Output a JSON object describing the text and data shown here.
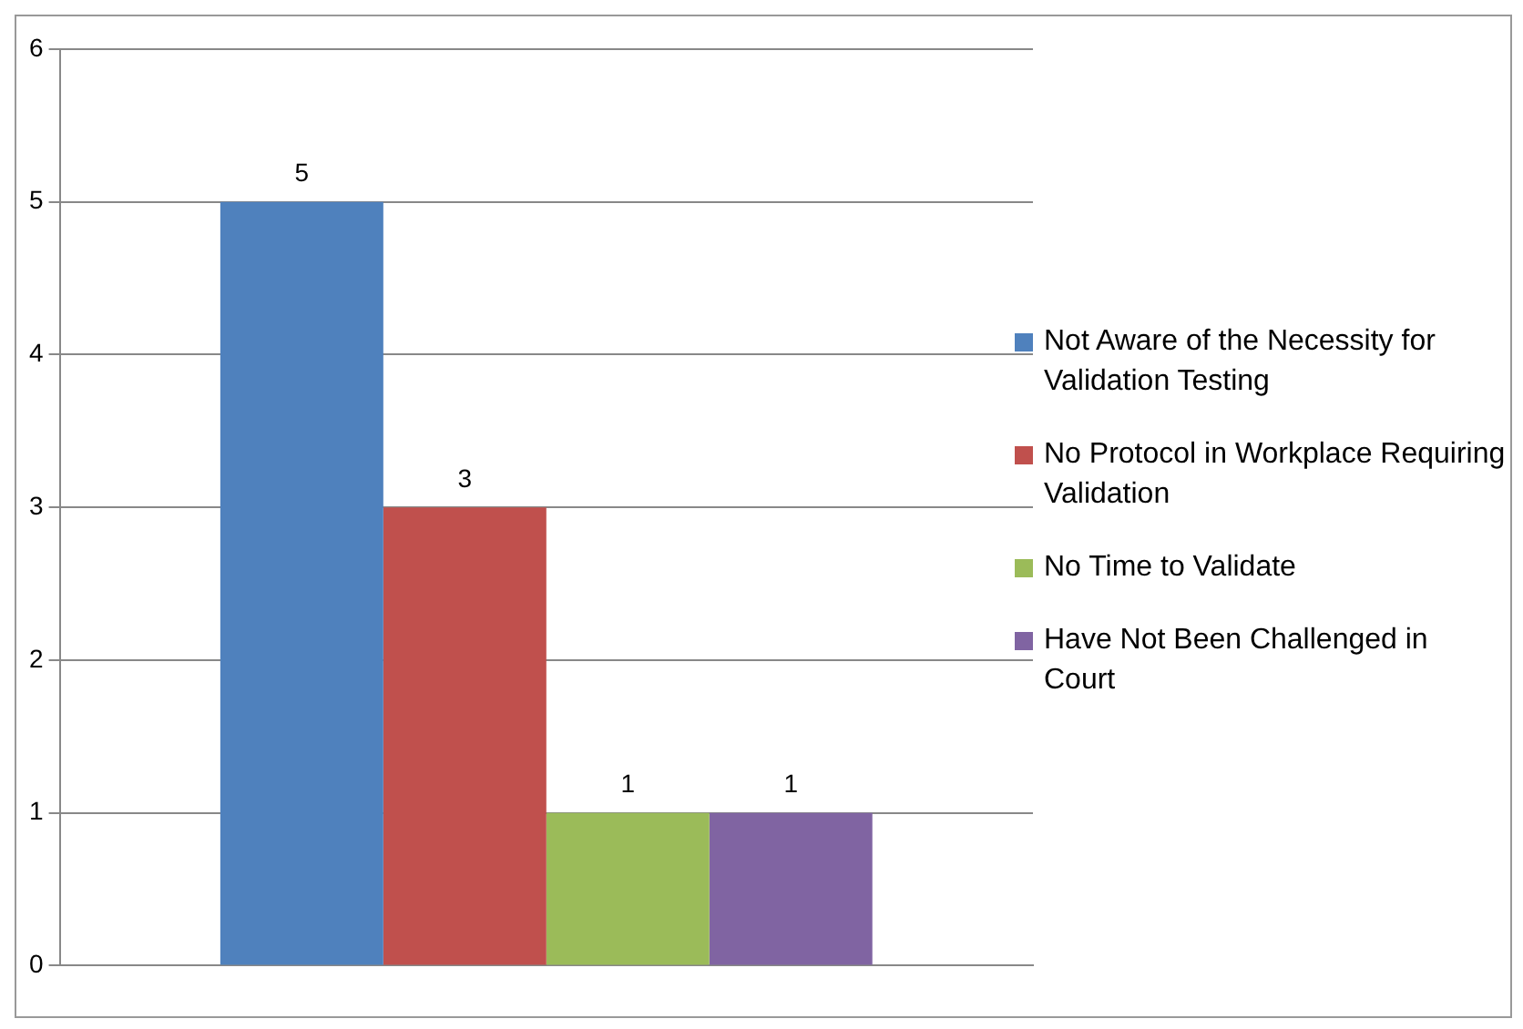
{
  "chart_data": {
    "type": "bar",
    "categories": [
      null
    ],
    "series": [
      {
        "name": "Not Aware of the Necessity for Validation Testing",
        "color": "#4f81bd",
        "values": [
          5
        ]
      },
      {
        "name": "No Protocol in Workplace Requiring Validation",
        "color": "#c0504d",
        "values": [
          3
        ]
      },
      {
        "name": "No Time to Validate",
        "color": "#9bbb59",
        "values": [
          1
        ]
      },
      {
        "name": "Have Not Been Challenged in Court",
        "color": "#8064a2",
        "values": [
          1
        ]
      }
    ],
    "ylim": [
      0,
      6
    ],
    "yticks": [
      0,
      1,
      2,
      3,
      4,
      5,
      6
    ],
    "grid": "y",
    "legend": "right",
    "data_labels": true
  }
}
